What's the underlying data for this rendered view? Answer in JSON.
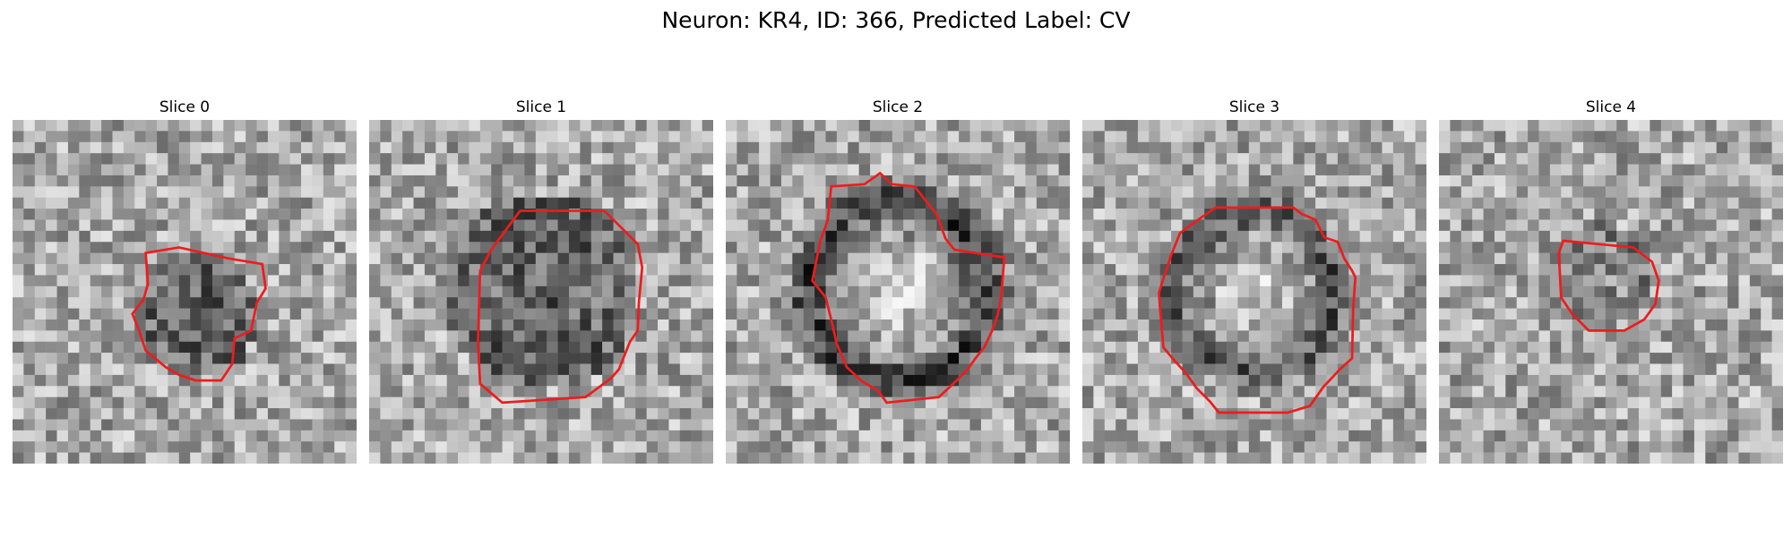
{
  "figure": {
    "title": "Neuron: KR4, ID: 366, Predicted Label: CV"
  },
  "colors": {
    "contour": "#ee1c1c",
    "background": "#ffffff"
  },
  "panels": [
    {
      "title": "Slice 0"
    },
    {
      "title": "Slice 1"
    },
    {
      "title": "Slice 2"
    },
    {
      "title": "Slice 3"
    },
    {
      "title": "Slice 4"
    }
  ]
}
